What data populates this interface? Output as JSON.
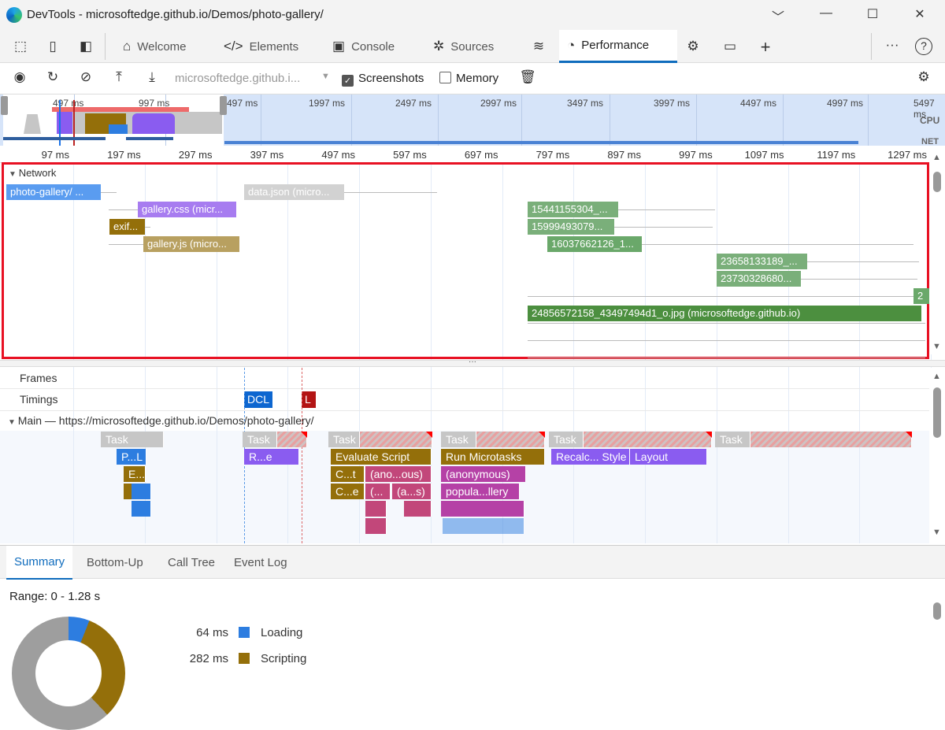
{
  "window": {
    "title": "DevTools - microsoftedge.github.io/Demos/photo-gallery/",
    "minimize": "﹀",
    "restore": "—",
    "maximize": "☐",
    "close": "✕"
  },
  "tabs": [
    {
      "label": "Welcome",
      "icon": "home-icon"
    },
    {
      "label": "Elements",
      "icon": "code-icon"
    },
    {
      "label": "Console",
      "icon": "console-icon"
    },
    {
      "label": "Sources",
      "icon": "bug-icon"
    },
    {
      "label": "Performance",
      "icon": "gauge-icon",
      "active": true
    }
  ],
  "toolbar": {
    "url_select": "microsoftedge.github.i...",
    "screenshots_label": "Screenshots",
    "screenshots_checked": true,
    "memory_label": "Memory",
    "memory_checked": false
  },
  "overview": {
    "ticks": [
      "497 ms",
      "997 ms",
      "497 ms",
      "1997 ms",
      "2497 ms",
      "2997 ms",
      "3497 ms",
      "3997 ms",
      "4497 ms",
      "4997 ms",
      "5497 ms"
    ],
    "cpu_label": "CPU",
    "net_label": "NET"
  },
  "ruler": {
    "ticks": [
      "97 ms",
      "197 ms",
      "297 ms",
      "397 ms",
      "497 ms",
      "597 ms",
      "697 ms",
      "797 ms",
      "897 ms",
      "997 ms",
      "1097 ms",
      "1197 ms",
      "1297 ms"
    ]
  },
  "network": {
    "label": "Network",
    "requests": [
      "photo-gallery/ ...",
      "data.json (micro...",
      "gallery.css (micr...",
      "exif...",
      "gallery.js (micro...",
      "15441155304_...",
      "15999493079...",
      "16037662126_1...",
      "23658133189_...",
      "23730328680...",
      "2",
      "24856572158_43497494d1_o.jpg (microsoftedge.github.io)"
    ]
  },
  "tracks": {
    "frames": "Frames",
    "timings": "Timings",
    "dcl": "DCL",
    "load": "L",
    "main": "Main — https://microsoftedge.github.io/Demos/photo-gallery/"
  },
  "flame": {
    "task": "Task",
    "pl": "P...L",
    "e": "E...",
    "re": "R...e",
    "evaluate": "Evaluate Script",
    "ct": "C...t",
    "anon1": "(ano...ous)",
    "ce": "C...e",
    "paren": "(...",
    "as": "(a...s)",
    "microtasks": "Run Microtasks",
    "anon2": "(anonymous)",
    "popula": "popula...llery",
    "recalc": "Recalc... Style",
    "layout": "Layout"
  },
  "bottom": {
    "tabs": [
      "Summary",
      "Bottom-Up",
      "Call Tree",
      "Event Log"
    ],
    "active": "Summary",
    "range": "Range: 0 - 1.28 s",
    "legend": [
      {
        "value": "64 ms",
        "label": "Loading",
        "color": "#2d7de0"
      },
      {
        "value": "282 ms",
        "label": "Scripting",
        "color": "#946f0a"
      }
    ]
  }
}
